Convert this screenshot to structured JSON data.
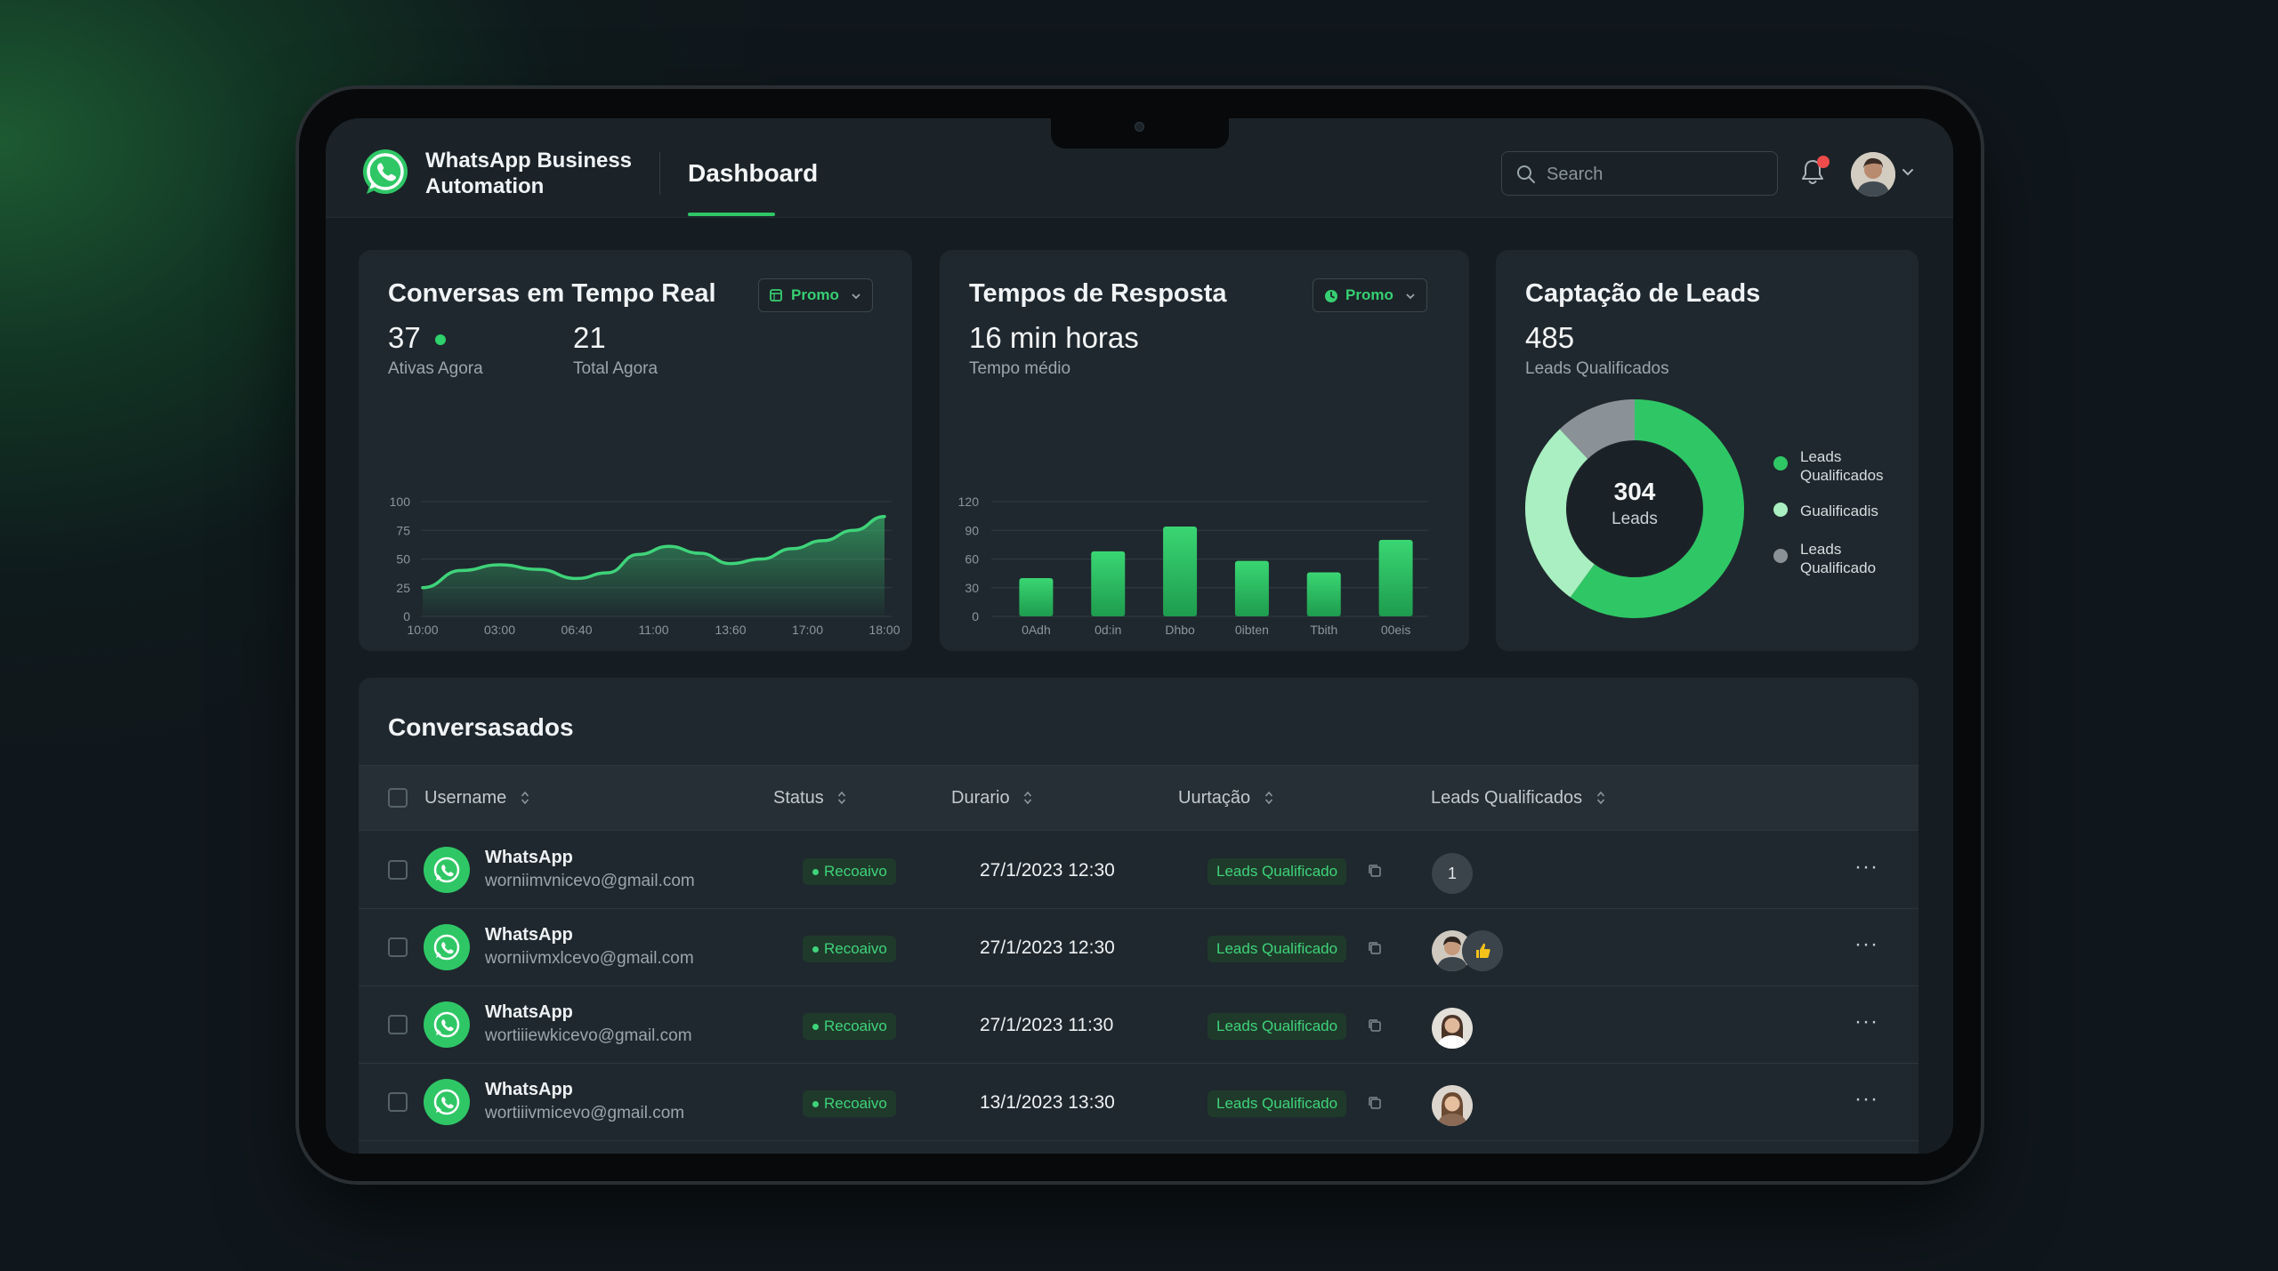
{
  "header": {
    "brand_line1": "WhatsApp Business",
    "brand_line2": "Automation",
    "tab_label": "Dashboard",
    "search_placeholder": "Search",
    "accent_color": "#2fc766"
  },
  "cards": {
    "conversas": {
      "title": "Conversas em Tempo Real",
      "filter_label": "Promo",
      "active_value": "37",
      "active_label": "Ativas Agora",
      "total_value": "21",
      "total_label": "Total Agora"
    },
    "tempos": {
      "title": "Tempos de Resposta",
      "filter_label": "Promo",
      "value": "16 min horas",
      "label": "Tempo médio"
    },
    "leads": {
      "title": "Captação de Leads",
      "value": "485",
      "label": "Leads Qualificados",
      "center_value": "304",
      "center_label": "Leads",
      "legend": [
        {
          "line1": "Leads",
          "line2": "Qualificados",
          "color": "#2fc766"
        },
        {
          "line1": "Gualificadis",
          "line2": "",
          "color": "#a9efc1"
        },
        {
          "line1": "Leads",
          "line2": "Qualificado",
          "color": "#8a9298"
        }
      ]
    }
  },
  "chart_data": [
    {
      "type": "area",
      "x": [
        "10:00",
        "03:00",
        "06:40",
        "11:00",
        "13:60",
        "17:00",
        "18:00"
      ],
      "y_ticks": [
        "100",
        "75",
        "50",
        "25",
        "0"
      ],
      "ylim": [
        0,
        100
      ],
      "series": [
        {
          "values": [
            {
              "x": 0.0,
              "y": 25
            },
            {
              "x": 0.5,
              "y": 40
            },
            {
              "x": 1.0,
              "y": 45
            },
            {
              "x": 1.5,
              "y": 41
            },
            {
              "x": 2.0,
              "y": 33
            },
            {
              "x": 2.4,
              "y": 38
            },
            {
              "x": 2.8,
              "y": 54
            },
            {
              "x": 3.2,
              "y": 61
            },
            {
              "x": 3.6,
              "y": 55
            },
            {
              "x": 4.0,
              "y": 46
            },
            {
              "x": 4.4,
              "y": 50
            },
            {
              "x": 4.8,
              "y": 59
            },
            {
              "x": 5.2,
              "y": 66
            },
            {
              "x": 5.6,
              "y": 75
            },
            {
              "x": 6.0,
              "y": 87
            }
          ]
        }
      ],
      "color": "#3fd37a"
    },
    {
      "type": "bar",
      "categories": [
        "0Adh",
        "0d:in",
        "Dhbo",
        "0ibten",
        "Tbith",
        "00eis"
      ],
      "values": [
        40,
        68,
        94,
        58,
        46,
        80
      ],
      "y_ticks": [
        "120",
        "90",
        "60",
        "30",
        "0"
      ],
      "ylim": [
        0,
        120
      ],
      "color": "#2fc766"
    },
    {
      "type": "pie",
      "categories": [
        "Leads Qualificados",
        "Gualificadis",
        "Leads Qualificado"
      ],
      "values": [
        60,
        28,
        12
      ],
      "colors": [
        "#2fc766",
        "#a9efc1",
        "#8a9298"
      ]
    }
  ],
  "table": {
    "title": "Conversasados",
    "columns": [
      "Username",
      "Status",
      "Durario",
      "Uurtação",
      "Leads Qualificados"
    ],
    "rows": [
      {
        "name": "WhatsApp",
        "email": "worniimvnicevo@gmail.com",
        "status": "Recoaivo",
        "date": "27/1/2023 12:30",
        "lead": "Leads Qualificado",
        "chips": [
          "1"
        ]
      },
      {
        "name": "WhatsApp",
        "email": "worniivmxlcevo@gmail.com",
        "status": "Recoaivo",
        "date": "27/1/2023 12:30",
        "lead": "Leads Qualificado",
        "chips": [
          "avatar-man",
          "thumbs-up"
        ]
      },
      {
        "name": "WhatsApp",
        "email": "wortiiiewkicevo@gmail.com",
        "status": "Recoaivo",
        "date": "27/1/2023 11:30",
        "lead": "Leads Qualificado",
        "chips": [
          "avatar-woman"
        ]
      },
      {
        "name": "WhatsApp",
        "email": "wortiiivmicevo@gmail.com",
        "status": "Recoaivo",
        "date": "13/1/2023 13:30",
        "lead": "Leads Qualificado",
        "chips": [
          "avatar-woman-2"
        ]
      }
    ]
  }
}
